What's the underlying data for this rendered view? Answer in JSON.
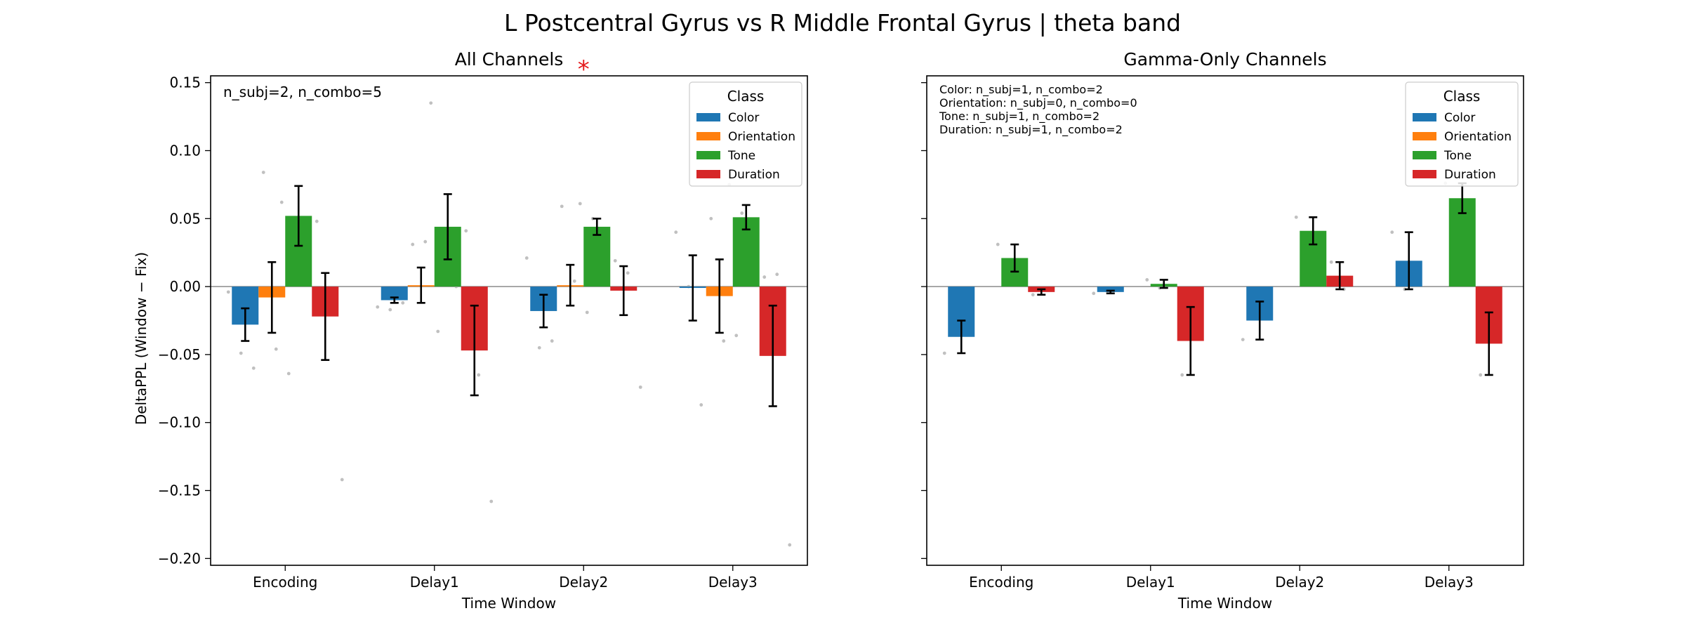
{
  "figure": {
    "title": "L Postcentral Gyrus vs R Middle Frontal Gyrus  |  theta band",
    "ylabel": "DeltaPPL (Window − Fix)",
    "significance_marker": "*"
  },
  "legend": {
    "title": "Class",
    "entries": [
      {
        "label": "Color",
        "color": "#1f77b4"
      },
      {
        "label": "Orientation",
        "color": "#ff7f0e"
      },
      {
        "label": "Tone",
        "color": "#2ca02c"
      },
      {
        "label": "Duration",
        "color": "#d62728"
      }
    ]
  },
  "chart_data": [
    {
      "type": "bar",
      "title": "All Channels",
      "xlabel": "Time Window",
      "ylabel": "DeltaPPL (Window − Fix)",
      "ylim": [
        -0.205,
        0.155
      ],
      "yticks": [
        0.15,
        0.1,
        0.05,
        0.0,
        -0.05,
        -0.1,
        -0.15,
        -0.2
      ],
      "ytick_labels": [
        "0.15",
        "0.10",
        "0.05",
        "0.00",
        "−0.05",
        "−0.10",
        "−0.15",
        "−0.20"
      ],
      "categories": [
        "Encoding",
        "Delay1",
        "Delay2",
        "Delay3"
      ],
      "annotation": [
        "n_subj=2, n_combo=5"
      ],
      "significance_category": "Delay2",
      "series": [
        {
          "name": "Color",
          "values": [
            -0.028,
            -0.01,
            -0.018,
            -0.001
          ],
          "errors": [
            0.012,
            0.002,
            0.012,
            0.024
          ]
        },
        {
          "name": "Orientation",
          "values": [
            -0.008,
            0.001,
            0.001,
            -0.007
          ],
          "errors": [
            0.026,
            0.013,
            0.015,
            0.027
          ]
        },
        {
          "name": "Tone",
          "values": [
            0.052,
            0.044,
            0.044,
            0.051
          ],
          "errors": [
            0.022,
            0.024,
            0.006,
            0.009
          ]
        },
        {
          "name": "Duration",
          "values": [
            -0.022,
            -0.047,
            -0.003,
            -0.051
          ],
          "errors": [
            0.032,
            0.033,
            0.018,
            0.037
          ]
        }
      ],
      "points": [
        [
          [
            -0.004,
            -0.049,
            -0.06
          ],
          [
            -0.015,
            -0.017,
            -0.012
          ],
          [
            0.021,
            -0.045,
            -0.04
          ],
          [
            0.04,
            0.0,
            -0.087
          ]
        ],
        [
          [
            0.084,
            -0.046,
            -0.064
          ],
          [
            0.031,
            0.033,
            -0.033
          ],
          [
            0.059,
            0.004,
            -0.019
          ],
          [
            0.05,
            -0.04,
            -0.036
          ]
        ],
        [
          [
            0.062,
            0.048,
            0.01
          ],
          [
            0.135,
            0.03,
            0.0
          ],
          [
            0.061,
            0.05,
            0.029
          ],
          [
            0.075,
            0.054,
            0.02
          ]
        ],
        [
          [
            0.048,
            -0.008,
            -0.142
          ],
          [
            0.041,
            -0.065,
            -0.158
          ],
          [
            0.019,
            0.01,
            -0.074
          ],
          [
            0.007,
            0.009,
            -0.19
          ]
        ]
      ]
    },
    {
      "type": "bar",
      "title": "Gamma-Only Channels",
      "xlabel": "Time Window",
      "ylabel": "",
      "ylim": [
        -0.205,
        0.155
      ],
      "yticks": [
        0.15,
        0.1,
        0.05,
        0.0,
        -0.05,
        -0.1,
        -0.15,
        -0.2
      ],
      "categories": [
        "Encoding",
        "Delay1",
        "Delay2",
        "Delay3"
      ],
      "annotation": [
        "Color: n_subj=1, n_combo=2",
        "Orientation: n_subj=0, n_combo=0",
        "Tone: n_subj=1, n_combo=2",
        "Duration: n_subj=1, n_combo=2"
      ],
      "series": [
        {
          "name": "Color",
          "values": [
            -0.037,
            -0.004,
            -0.025,
            0.019
          ],
          "errors": [
            0.012,
            0.001,
            0.014,
            0.021
          ]
        },
        {
          "name": "Orientation",
          "values": [
            null,
            null,
            null,
            null
          ],
          "errors": [
            null,
            null,
            null,
            null
          ]
        },
        {
          "name": "Tone",
          "values": [
            0.021,
            0.002,
            0.041,
            0.065
          ],
          "errors": [
            0.01,
            0.003,
            0.01,
            0.011
          ]
        },
        {
          "name": "Duration",
          "values": [
            -0.004,
            -0.04,
            0.008,
            -0.042
          ],
          "errors": [
            0.002,
            0.025,
            0.01,
            0.023
          ]
        }
      ],
      "points": [
        [
          [
            -0.049,
            -0.025
          ],
          [
            -0.005,
            -0.003
          ],
          [
            -0.039,
            -0.011
          ],
          [
            0.04,
            -0.002
          ]
        ],
        [
          [],
          [],
          [],
          []
        ],
        [
          [
            0.031,
            0.011
          ],
          [
            0.005,
            -0.001
          ],
          [
            0.051,
            0.031
          ],
          [
            0.076,
            0.054
          ]
        ],
        [
          [
            -0.006,
            -0.002
          ],
          [
            -0.065,
            -0.015
          ],
          [
            0.018,
            -0.002
          ],
          [
            -0.065,
            -0.019
          ]
        ]
      ]
    }
  ]
}
